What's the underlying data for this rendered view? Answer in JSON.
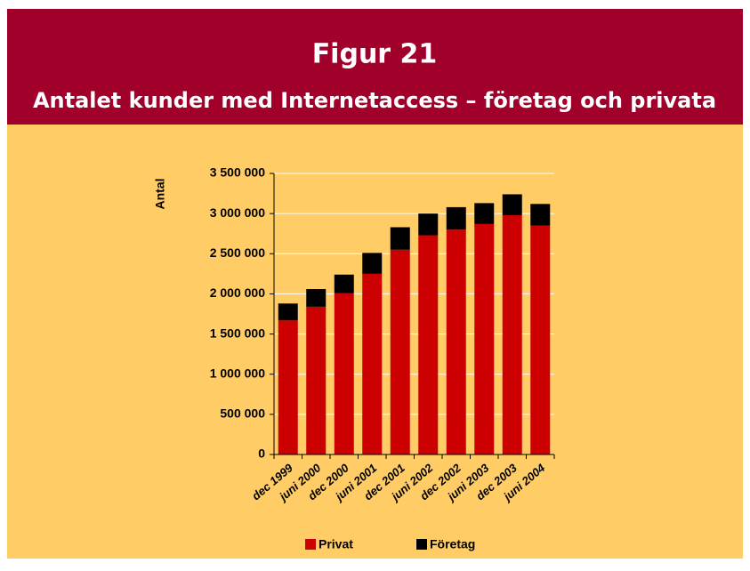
{
  "chart_data": {
    "type": "stacked_bar",
    "title": "Figur 21",
    "subtitle": "Antalet kunder med Internetaccess – företag och privata",
    "y_label": "Antal",
    "categories": [
      "dec 1999",
      "juni 2000",
      "dec 2000",
      "juni 2001",
      "dec 2001",
      "juni 2002",
      "dec 2002",
      "juni 2003",
      "dec 2003",
      "juni 2004"
    ],
    "series": [
      {
        "name": "Privat",
        "color": "#cc0000",
        "values": [
          1670000,
          1840000,
          2010000,
          2250000,
          2550000,
          2730000,
          2800000,
          2870000,
          2980000,
          2850000
        ]
      },
      {
        "name": "Företag",
        "color": "#000000",
        "values": [
          210000,
          220000,
          230000,
          260000,
          280000,
          270000,
          280000,
          260000,
          260000,
          270000
        ]
      }
    ],
    "ylim": [
      0,
      3500000
    ],
    "yticks": [
      0,
      {
        "value": 500000,
        "label": "500 000"
      },
      {
        "value": 1000000,
        "label": "1 000 000"
      },
      {
        "value": 1500000,
        "label": "1 500 000"
      },
      {
        "value": 2000000,
        "label": "2 000 000"
      },
      {
        "value": 2500000,
        "label": "2 500 000"
      },
      {
        "value": 3000000,
        "label": "3 000 000"
      },
      {
        "value": 3500000,
        "label": "3 500 000"
      }
    ],
    "grid": true,
    "legend": "bottom"
  }
}
